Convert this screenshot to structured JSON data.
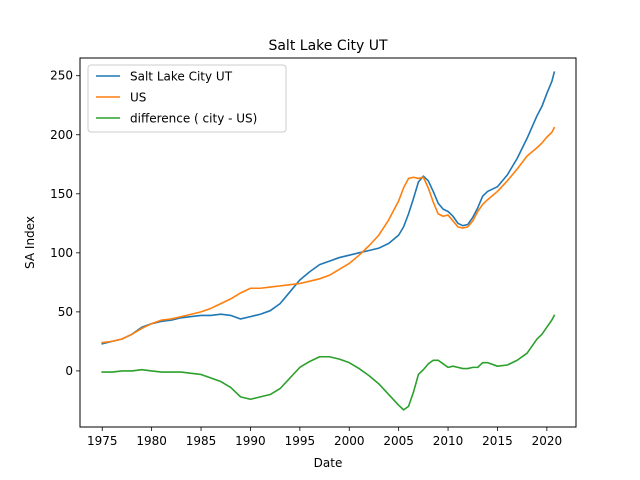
{
  "chart_data": {
    "type": "line",
    "title": "Salt Lake City UT",
    "xlabel": "Date",
    "ylabel": "SA Index",
    "xlim": [
      1972.75,
      2022.95
    ],
    "ylim": [
      -47.5,
      265.0
    ],
    "x_ticks": [
      1975,
      1980,
      1985,
      1990,
      1995,
      2000,
      2005,
      2010,
      2015,
      2020
    ],
    "y_ticks": [
      0,
      50,
      100,
      150,
      200,
      250
    ],
    "grid": false,
    "legend_position": "top-left",
    "series": [
      {
        "name": "Salt Lake City UT",
        "color": "#1f77b4",
        "points": [
          [
            1975.0,
            23
          ],
          [
            1976.0,
            25
          ],
          [
            1977.0,
            27
          ],
          [
            1978.0,
            31
          ],
          [
            1979.0,
            37
          ],
          [
            1980.0,
            40
          ],
          [
            1981.0,
            42
          ],
          [
            1982.0,
            43
          ],
          [
            1983.0,
            45
          ],
          [
            1984.0,
            46
          ],
          [
            1985.0,
            47
          ],
          [
            1986.0,
            47
          ],
          [
            1987.0,
            48
          ],
          [
            1988.0,
            47
          ],
          [
            1989.0,
            44
          ],
          [
            1990.0,
            46
          ],
          [
            1991.0,
            48
          ],
          [
            1992.0,
            51
          ],
          [
            1993.0,
            57
          ],
          [
            1994.0,
            67
          ],
          [
            1995.0,
            77
          ],
          [
            1996.0,
            84
          ],
          [
            1997.0,
            90
          ],
          [
            1998.0,
            93
          ],
          [
            1999.0,
            96
          ],
          [
            2000.0,
            98
          ],
          [
            2001.0,
            100
          ],
          [
            2002.0,
            102
          ],
          [
            2003.0,
            104
          ],
          [
            2004.0,
            108
          ],
          [
            2005.0,
            115
          ],
          [
            2005.5,
            122
          ],
          [
            2006.0,
            133
          ],
          [
            2006.5,
            146
          ],
          [
            2007.0,
            160
          ],
          [
            2007.5,
            165
          ],
          [
            2008.0,
            161
          ],
          [
            2008.5,
            152
          ],
          [
            2009.0,
            142
          ],
          [
            2009.5,
            137
          ],
          [
            2010.0,
            135
          ],
          [
            2010.5,
            131
          ],
          [
            2011.0,
            125
          ],
          [
            2011.5,
            123
          ],
          [
            2012.0,
            124
          ],
          [
            2012.5,
            130
          ],
          [
            2013.0,
            138
          ],
          [
            2013.5,
            148
          ],
          [
            2014.0,
            152
          ],
          [
            2015.0,
            156
          ],
          [
            2016.0,
            166
          ],
          [
            2017.0,
            180
          ],
          [
            2018.0,
            197
          ],
          [
            2019.0,
            216
          ],
          [
            2019.5,
            224
          ],
          [
            2020.0,
            235
          ],
          [
            2020.5,
            245
          ],
          [
            2020.75,
            253
          ]
        ]
      },
      {
        "name": "US",
        "color": "#ff7f0e",
        "points": [
          [
            1975.0,
            24
          ],
          [
            1976.0,
            25
          ],
          [
            1977.0,
            27
          ],
          [
            1978.0,
            31
          ],
          [
            1979.0,
            36
          ],
          [
            1980.0,
            40
          ],
          [
            1981.0,
            43
          ],
          [
            1982.0,
            44
          ],
          [
            1983.0,
            46
          ],
          [
            1984.0,
            48
          ],
          [
            1985.0,
            50
          ],
          [
            1986.0,
            53
          ],
          [
            1987.0,
            57
          ],
          [
            1988.0,
            61
          ],
          [
            1989.0,
            66
          ],
          [
            1990.0,
            70
          ],
          [
            1991.0,
            70
          ],
          [
            1992.0,
            71
          ],
          [
            1993.0,
            72
          ],
          [
            1994.0,
            73
          ],
          [
            1995.0,
            74
          ],
          [
            1996.0,
            76
          ],
          [
            1997.0,
            78
          ],
          [
            1998.0,
            81
          ],
          [
            1999.0,
            86
          ],
          [
            2000.0,
            91
          ],
          [
            2001.0,
            98
          ],
          [
            2002.0,
            106
          ],
          [
            2003.0,
            115
          ],
          [
            2004.0,
            128
          ],
          [
            2005.0,
            144
          ],
          [
            2005.5,
            155
          ],
          [
            2006.0,
            163
          ],
          [
            2006.5,
            164
          ],
          [
            2007.0,
            163
          ],
          [
            2007.5,
            164
          ],
          [
            2008.0,
            155
          ],
          [
            2008.5,
            143
          ],
          [
            2009.0,
            133
          ],
          [
            2009.5,
            131
          ],
          [
            2010.0,
            132
          ],
          [
            2010.5,
            127
          ],
          [
            2011.0,
            122
          ],
          [
            2011.5,
            121
          ],
          [
            2012.0,
            122
          ],
          [
            2012.5,
            127
          ],
          [
            2013.0,
            135
          ],
          [
            2013.5,
            141
          ],
          [
            2014.0,
            145
          ],
          [
            2015.0,
            152
          ],
          [
            2016.0,
            161
          ],
          [
            2017.0,
            171
          ],
          [
            2018.0,
            182
          ],
          [
            2019.0,
            189
          ],
          [
            2019.5,
            193
          ],
          [
            2020.0,
            198
          ],
          [
            2020.5,
            202
          ],
          [
            2020.75,
            206
          ]
        ]
      },
      {
        "name": "difference ( city - US)",
        "color": "#2ca02c",
        "points": [
          [
            1975.0,
            -1
          ],
          [
            1976.0,
            -1
          ],
          [
            1977.0,
            0
          ],
          [
            1978.0,
            0
          ],
          [
            1979.0,
            1
          ],
          [
            1980.0,
            0
          ],
          [
            1981.0,
            -1
          ],
          [
            1982.0,
            -1
          ],
          [
            1983.0,
            -1
          ],
          [
            1984.0,
            -2
          ],
          [
            1985.0,
            -3
          ],
          [
            1986.0,
            -6
          ],
          [
            1987.0,
            -9
          ],
          [
            1988.0,
            -14
          ],
          [
            1989.0,
            -22
          ],
          [
            1990.0,
            -24
          ],
          [
            1991.0,
            -22
          ],
          [
            1992.0,
            -20
          ],
          [
            1993.0,
            -15
          ],
          [
            1994.0,
            -6
          ],
          [
            1995.0,
            3
          ],
          [
            1996.0,
            8
          ],
          [
            1997.0,
            12
          ],
          [
            1998.0,
            12
          ],
          [
            1999.0,
            10
          ],
          [
            2000.0,
            7
          ],
          [
            2001.0,
            2
          ],
          [
            2002.0,
            -4
          ],
          [
            2003.0,
            -11
          ],
          [
            2004.0,
            -20
          ],
          [
            2005.0,
            -29
          ],
          [
            2005.5,
            -33
          ],
          [
            2006.0,
            -30
          ],
          [
            2006.5,
            -18
          ],
          [
            2007.0,
            -3
          ],
          [
            2007.5,
            1
          ],
          [
            2008.0,
            6
          ],
          [
            2008.5,
            9
          ],
          [
            2009.0,
            9
          ],
          [
            2009.5,
            6
          ],
          [
            2010.0,
            3
          ],
          [
            2010.5,
            4
          ],
          [
            2011.0,
            3
          ],
          [
            2011.5,
            2
          ],
          [
            2012.0,
            2
          ],
          [
            2012.5,
            3
          ],
          [
            2013.0,
            3
          ],
          [
            2013.5,
            7
          ],
          [
            2014.0,
            7
          ],
          [
            2015.0,
            4
          ],
          [
            2016.0,
            5
          ],
          [
            2017.0,
            9
          ],
          [
            2018.0,
            15
          ],
          [
            2019.0,
            27
          ],
          [
            2019.5,
            31
          ],
          [
            2020.0,
            37
          ],
          [
            2020.5,
            43
          ],
          [
            2020.75,
            47
          ]
        ]
      }
    ]
  }
}
